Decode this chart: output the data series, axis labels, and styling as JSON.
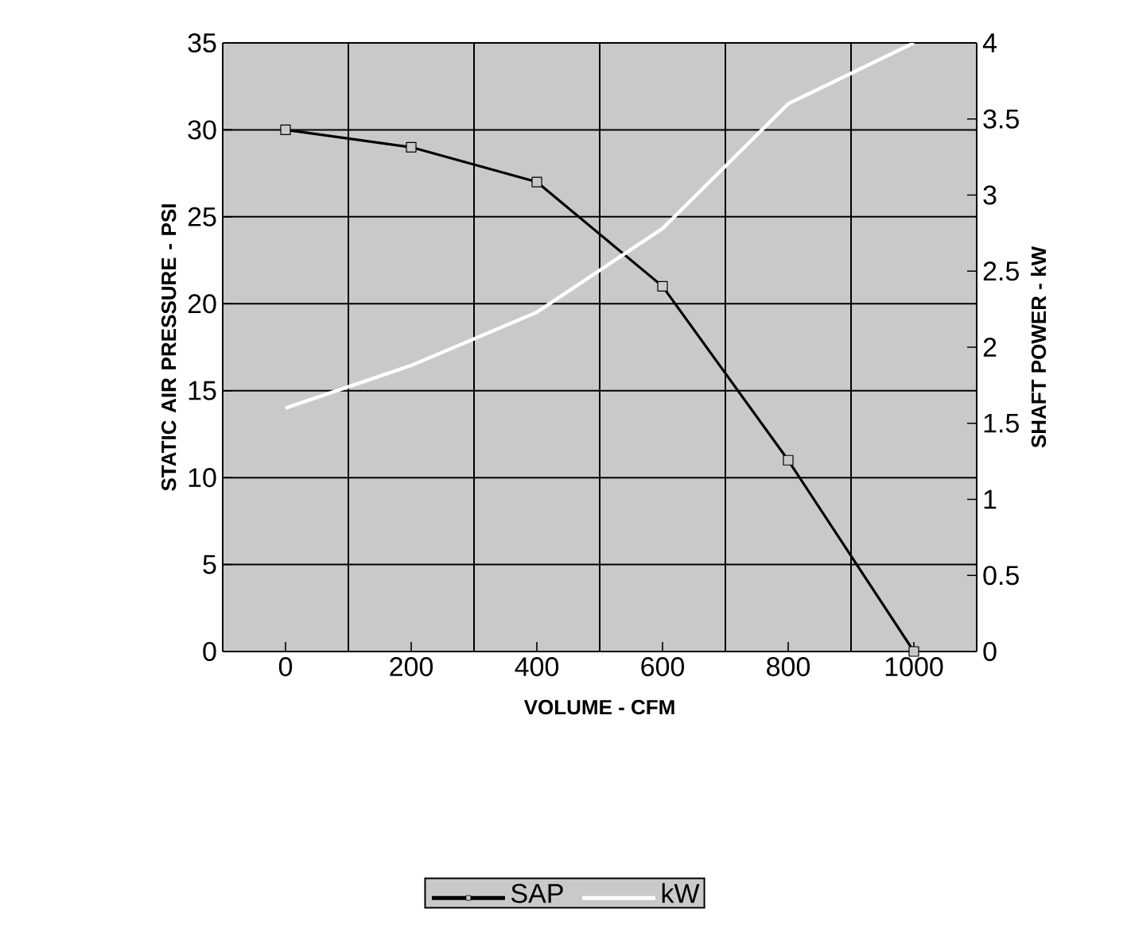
{
  "chart_data": {
    "type": "line",
    "xlabel": "VOLUME - CFM",
    "ylabel": "STATIC AIR PRESSURE - PSI",
    "y2label": "SHAFT POWER - kW",
    "categories": [
      "0",
      "200",
      "400",
      "600",
      "800",
      "1000"
    ],
    "series": [
      {
        "name": "SAP",
        "color": "#000000",
        "marker": "square",
        "values": [
          30,
          29,
          27,
          21,
          11,
          0
        ]
      },
      {
        "name": "kW",
        "color": "#ffffff",
        "marker": "none",
        "axis": "y2",
        "values": [
          1.6,
          1.88,
          2.23,
          2.78,
          3.6,
          4.0
        ]
      }
    ],
    "ylim": [
      0,
      35
    ],
    "yticks": [
      0,
      5,
      10,
      15,
      20,
      25,
      30,
      35
    ],
    "y2lim": [
      0,
      4
    ],
    "y2ticks": [
      0,
      0.5,
      1,
      1.5,
      2,
      2.5,
      3,
      3.5,
      4
    ],
    "grid": true,
    "legend": "bottom"
  }
}
